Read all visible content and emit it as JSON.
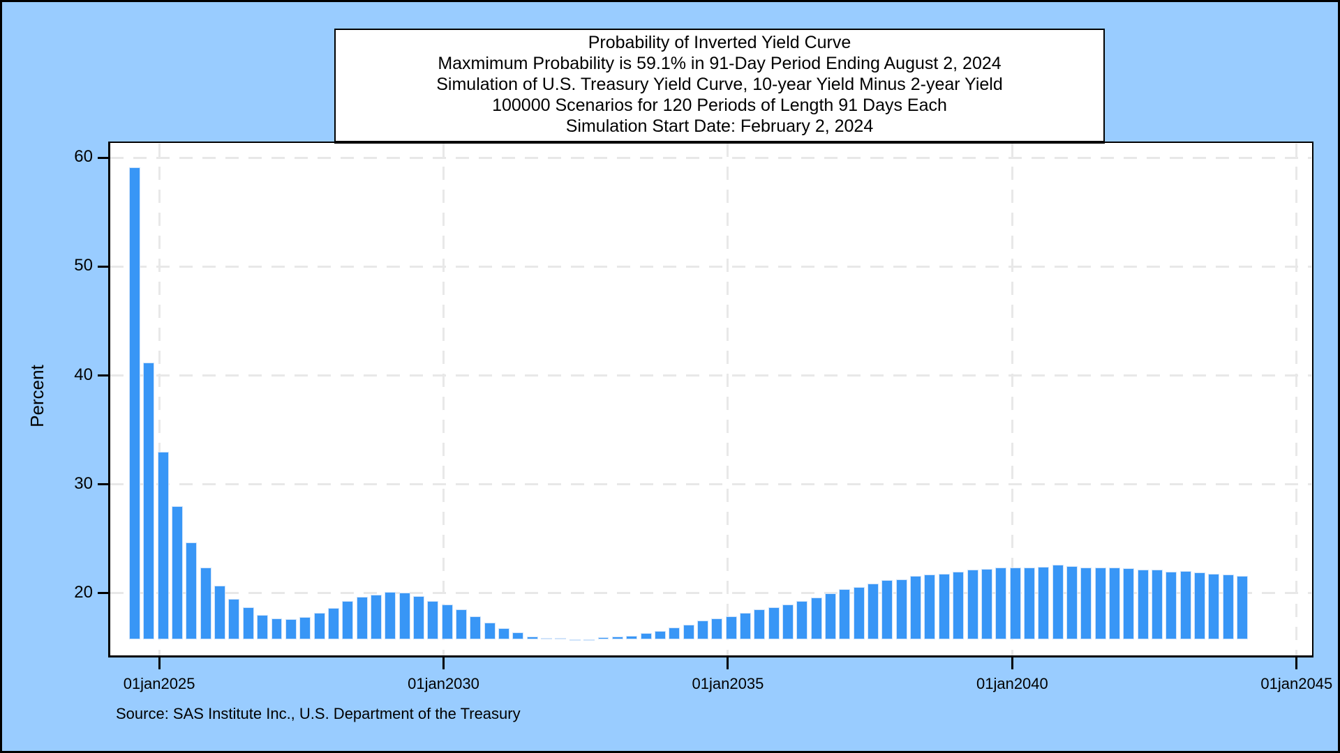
{
  "title_box": {
    "lines": [
      "Probability of Inverted Yield Curve",
      "Maxmimum Probability is 59.1% in 91-Day Period Ending August 2, 2024",
      "Simulation of U.S. Treasury Yield Curve, 10-year Yield Minus 2-year Yield",
      "100000 Scenarios for 120 Periods of Length 91 Days Each",
      "Simulation Start Date: February 2, 2024"
    ]
  },
  "footer": {
    "source_text": "Source: SAS Institute Inc., U.S. Department of the Treasury"
  },
  "chart_data": {
    "type": "bar",
    "title": "Probability of Inverted Yield Curve",
    "ylabel": "Percent",
    "xlabel": "",
    "grid": true,
    "y_ticks": [
      20,
      30,
      40,
      50,
      60
    ],
    "x_tick_labels": [
      "01jan2025",
      "01jan2030",
      "01jan2035",
      "01jan2040",
      "01jan2045"
    ],
    "x_tick_years": [
      2025,
      2030,
      2035,
      2040,
      2045
    ],
    "xlim": [
      2024.14,
      2045.26
    ],
    "ylim": [
      14.3,
      61.3
    ],
    "bar_baseline_percent": 15.8,
    "first_period_end_year": 2024.57,
    "period_length_years": 0.2497,
    "bar_width_years": 0.196,
    "max_value_percent": 59.1,
    "max_period_ending": "August 2, 2024",
    "values": [
      59.1,
      41.2,
      33.0,
      28.0,
      24.7,
      22.4,
      20.7,
      19.5,
      18.7,
      18.0,
      17.7,
      17.6,
      17.8,
      18.2,
      18.65,
      19.3,
      19.65,
      19.9,
      20.15,
      20.05,
      19.75,
      19.3,
      18.95,
      18.5,
      17.9,
      17.3,
      16.8,
      16.4,
      16.0,
      15.9,
      15.9,
      15.8,
      15.8,
      15.95,
      16.0,
      16.1,
      16.35,
      16.55,
      16.85,
      17.1,
      17.5,
      17.7,
      17.9,
      18.2,
      18.5,
      18.7,
      19.0,
      19.3,
      19.6,
      20.0,
      20.4,
      20.6,
      20.9,
      21.2,
      21.3,
      21.6,
      21.7,
      21.8,
      22.0,
      22.2,
      22.25,
      22.35,
      22.4,
      22.4,
      22.45,
      22.65,
      22.5,
      22.4,
      22.35,
      22.4,
      22.3,
      22.2,
      22.15,
      22.0,
      22.05,
      21.9,
      21.8,
      21.7,
      21.6
    ],
    "colors": {
      "bar_fill": "#3896f6",
      "bar_edge": "#cfe3fa",
      "outer_background": "#99ccff",
      "plot_background": "#ffffff",
      "gridline": "#e8e8e8",
      "frame_and_text": "#000000"
    },
    "legend": null
  }
}
